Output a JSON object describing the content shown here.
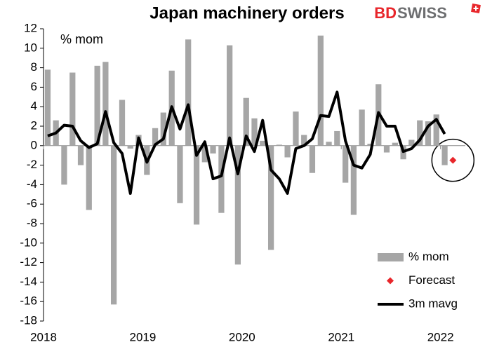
{
  "chart_data": {
    "type": "bar",
    "title": "Japan machinery orders",
    "logo_text": [
      "BD",
      "SWISS"
    ],
    "y_label": "% mom",
    "x": [
      2018.042,
      2018.125,
      2018.208,
      2018.292,
      2018.375,
      2018.458,
      2018.542,
      2018.625,
      2018.708,
      2018.792,
      2018.875,
      2018.958,
      2019.042,
      2019.125,
      2019.208,
      2019.292,
      2019.375,
      2019.458,
      2019.542,
      2019.625,
      2019.708,
      2019.792,
      2019.875,
      2019.958,
      2020.042,
      2020.125,
      2020.208,
      2020.292,
      2020.375,
      2020.458,
      2020.542,
      2020.625,
      2020.708,
      2020.792,
      2020.875,
      2020.958,
      2021.042,
      2021.125,
      2021.208,
      2021.292,
      2021.375,
      2021.458,
      2021.542,
      2021.625,
      2021.708,
      2021.792,
      2021.875,
      2021.958,
      2022.042
    ],
    "series": [
      {
        "name": "% mom",
        "type": "bar",
        "color": "#a6a6a6",
        "values": [
          7.8,
          2.6,
          -4.0,
          7.5,
          -2.0,
          -6.6,
          8.2,
          8.6,
          -16.3,
          4.7,
          -0.3,
          1.1,
          -3.0,
          1.8,
          3.4,
          7.7,
          -5.9,
          10.9,
          -8.1,
          -1.7,
          -0.8,
          -6.9,
          10.3,
          -12.2,
          4.9,
          2.8,
          0.5,
          -10.7,
          0.1,
          -1.2,
          3.5,
          1.1,
          -2.8,
          11.3,
          0.4,
          1.5,
          -3.8,
          -7.1,
          3.7,
          0.2,
          6.3,
          -0.7,
          0.3,
          -1.4,
          0.6,
          2.6,
          2.5,
          3.2,
          -2.0
        ]
      },
      {
        "name": "Forecast",
        "type": "scatter",
        "color": "#e8262b",
        "x": [
          2022.125
        ],
        "values": [
          -1.5
        ]
      },
      {
        "name": "3m mavg",
        "type": "line",
        "color": "#000000",
        "values": [
          1.0,
          1.3,
          2.1,
          2.0,
          0.5,
          -0.2,
          0.2,
          3.5,
          0.3,
          -0.8,
          -4.9,
          0.8,
          -1.7,
          0.1,
          0.7,
          4.0,
          1.7,
          4.2,
          -1.0,
          0.4,
          -3.4,
          -3.1,
          0.8,
          -2.9,
          1.0,
          -0.6,
          2.6,
          -2.5,
          -3.4,
          -4.9,
          -0.3,
          0.0,
          0.7,
          3.1,
          3.0,
          5.5,
          0.5,
          -2.0,
          -2.3,
          -0.9,
          3.4,
          2.0,
          2.0,
          -0.6,
          -0.3,
          0.6,
          2.0,
          2.7,
          1.2
        ]
      }
    ],
    "xlim": [
      2018,
      2022.25
    ],
    "xticks": [
      2018,
      2019,
      2020,
      2021,
      2022
    ],
    "ylim": [
      -18,
      12
    ],
    "yticks": [
      -18,
      -16,
      -14,
      -12,
      -10,
      -8,
      -6,
      -4,
      -2,
      0,
      2,
      4,
      6,
      8,
      10,
      12
    ],
    "grid": false,
    "legend": "lower right"
  }
}
